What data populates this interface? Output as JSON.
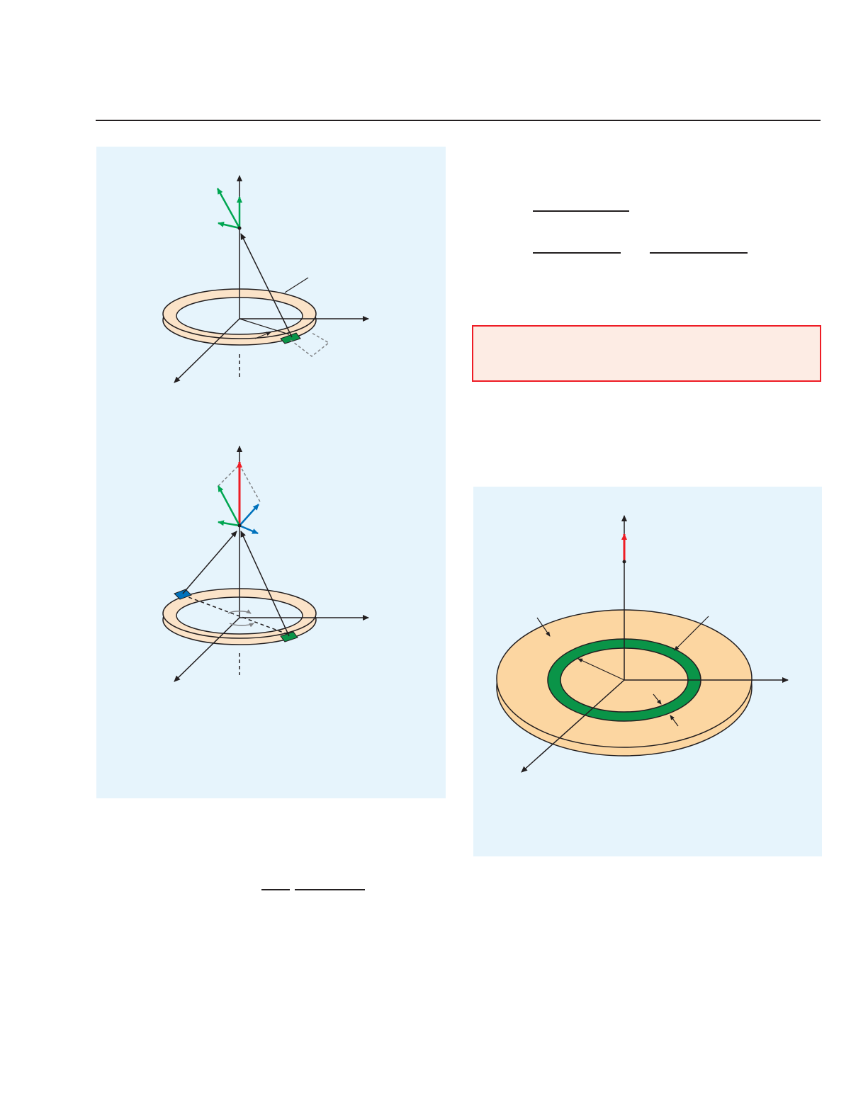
{
  "colors": {
    "panel_background": "#e6f4fc",
    "ring_fill": "#fbe3c8",
    "disk_fill": "#fcd6a1",
    "ring_element_green": "#0a9448",
    "vector_green": "#00a651",
    "vector_blue": "#0072bc",
    "vector_red": "#ee1c25",
    "result_box_fill": "#fdece4",
    "result_box_border": "#ee1c25"
  },
  "figures": [
    {
      "id": "ring-single-element",
      "description_icon": "charged-ring-with-field-components-icon"
    },
    {
      "id": "ring-symmetric-elements",
      "description_icon": "charged-ring-field-cancellation-icon"
    },
    {
      "id": "disk-with-annular-ring",
      "description_icon": "charged-disk-on-axis-field-icon"
    }
  ]
}
